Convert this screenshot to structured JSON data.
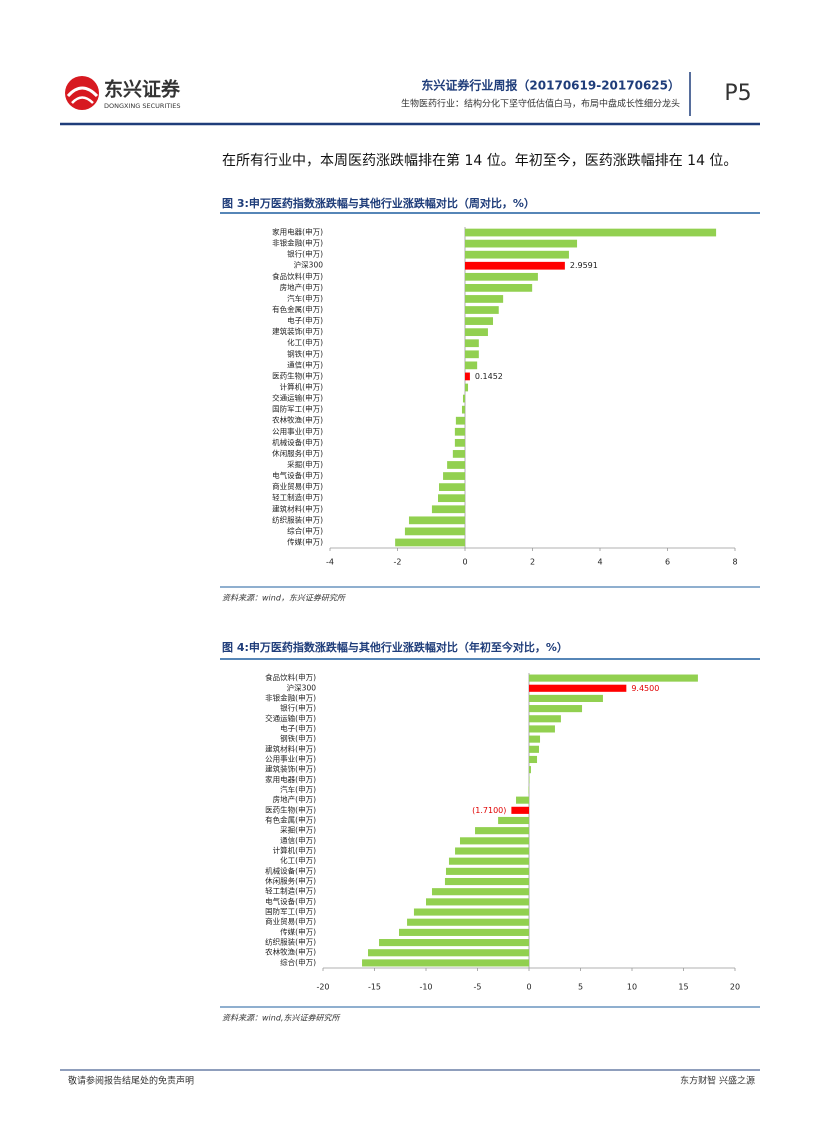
{
  "header": {
    "logo": "东兴证券",
    "logo_en": "DONGXING SECURITIES",
    "title": "东兴证券行业周报（20170619-20170625）",
    "subtitle": "生物医药行业：结构分化下坚守低估值白马，布局中盘成长性细分龙头",
    "page": "P5"
  },
  "paragraph": "在所有行业中，本周医药涨跌幅排在第 14 位。年初至今，医药涨跌幅排在 14 位。",
  "chart_data": [
    {
      "type": "hbar",
      "title": "图 3:申万医药指数涨跌幅与其他行业涨跌幅对比（周对比，%）",
      "source": "资料来源：wind，东兴证券研究所",
      "categories": [
        "家用电器(申万)",
        "非银金融(申万)",
        "银行(申万)",
        "沪深300",
        "食品饮料(申万)",
        "房地产(申万)",
        "汽车(申万)",
        "有色金属(申万)",
        "电子(申万)",
        "建筑装饰(申万)",
        "化工(申万)",
        "钢铁(申万)",
        "通信(申万)",
        "医药生物(申万)",
        "计算机(申万)",
        "交通运输(申万)",
        "国防军工(申万)",
        "农林牧渔(申万)",
        "公用事业(申万)",
        "机械设备(申万)",
        "休闲服务(申万)",
        "采掘(申万)",
        "电气设备(申万)",
        "商业贸易(申万)",
        "轻工制造(申万)",
        "建筑材料(申万)",
        "纺织服装(申万)",
        "综合(申万)",
        "传媒(申万)"
      ],
      "values": [
        7.44,
        3.32,
        3.08,
        2.9591,
        2.16,
        1.99,
        1.13,
        1.0,
        0.83,
        0.68,
        0.41,
        0.41,
        0.36,
        0.1452,
        0.09,
        -0.06,
        -0.09,
        -0.27,
        -0.3,
        -0.3,
        -0.36,
        -0.53,
        -0.65,
        -0.77,
        -0.8,
        -0.98,
        -1.66,
        -1.78,
        -2.07
      ],
      "value_labels": [
        null,
        null,
        null,
        "2.9591",
        null,
        null,
        null,
        null,
        null,
        null,
        null,
        null,
        null,
        "0.1452",
        null,
        null,
        null,
        null,
        null,
        null,
        null,
        null,
        null,
        null,
        null,
        null,
        null,
        null,
        null
      ],
      "colors": [
        "#92d050",
        "#92d050",
        "#92d050",
        "#ff0000",
        "#92d050",
        "#92d050",
        "#92d050",
        "#92d050",
        "#92d050",
        "#92d050",
        "#92d050",
        "#92d050",
        "#92d050",
        "#ff0000",
        "#92d050",
        "#92d050",
        "#92d050",
        "#92d050",
        "#92d050",
        "#92d050",
        "#92d050",
        "#92d050",
        "#92d050",
        "#92d050",
        "#92d050",
        "#92d050",
        "#92d050",
        "#92d050",
        "#92d050"
      ],
      "label_color": "#222222",
      "xlim": [
        -4,
        8
      ],
      "xticks": [
        -4,
        -2,
        0,
        2,
        4,
        6,
        8
      ]
    },
    {
      "type": "hbar",
      "title": "图 4:申万医药指数涨跌幅与其他行业涨跌幅对比（年初至今对比，%）",
      "source": "资料来源：wind,东兴证券研究所",
      "categories": [
        "食品饮料(申万)",
        "沪深300",
        "非银金融(申万)",
        "银行(申万)",
        "交通运输(申万)",
        "电子(申万)",
        "钢铁(申万)",
        "建筑材料(申万)",
        "公用事业(申万)",
        "建筑装饰(申万)",
        "家用电器(申万)",
        "汽车(申万)",
        "房地产(申万)",
        "医药生物(申万)",
        "有色金属(申万)",
        "采掘(申万)",
        "通信(申万)",
        "计算机(申万)",
        "化工(申万)",
        "机械设备(申万)",
        "休闲服务(申万)",
        "轻工制造(申万)",
        "电气设备(申万)",
        "国防军工(申万)",
        "商业贸易(申万)",
        "传媒(申万)",
        "纺织服装(申万)",
        "农林牧渔(申万)",
        "综合(申万)"
      ],
      "values": [
        16.4,
        9.45,
        7.18,
        5.15,
        3.1,
        2.52,
        1.07,
        0.97,
        0.78,
        0.19,
        0.05,
        -0.05,
        -1.26,
        -1.71,
        -3.0,
        -5.24,
        -6.7,
        -7.18,
        -7.77,
        -8.06,
        -8.16,
        -9.42,
        -10.0,
        -11.17,
        -11.84,
        -12.62,
        -14.56,
        -15.63,
        -16.21
      ],
      "value_labels": [
        null,
        "9.4500",
        null,
        null,
        null,
        null,
        null,
        null,
        null,
        null,
        null,
        null,
        null,
        "(1.7100)",
        null,
        null,
        null,
        null,
        null,
        null,
        null,
        null,
        null,
        null,
        null,
        null,
        null,
        null,
        null
      ],
      "colors": [
        "#92d050",
        "#ff0000",
        "#92d050",
        "#92d050",
        "#92d050",
        "#92d050",
        "#92d050",
        "#92d050",
        "#92d050",
        "#92d050",
        "#92d050",
        "#92d050",
        "#92d050",
        "#ff0000",
        "#92d050",
        "#92d050",
        "#92d050",
        "#92d050",
        "#92d050",
        "#92d050",
        "#92d050",
        "#92d050",
        "#92d050",
        "#92d050",
        "#92d050",
        "#92d050",
        "#92d050",
        "#92d050",
        "#92d050"
      ],
      "label_color": "#e00000",
      "xlim": [
        -20,
        20
      ],
      "xticks": [
        -20,
        -15,
        -10,
        -5,
        0,
        5,
        10,
        15,
        20
      ]
    }
  ],
  "footer": {
    "left": "敬请参阅报告结尾处的免责声明",
    "right": "东方财智 兴盛之源"
  }
}
